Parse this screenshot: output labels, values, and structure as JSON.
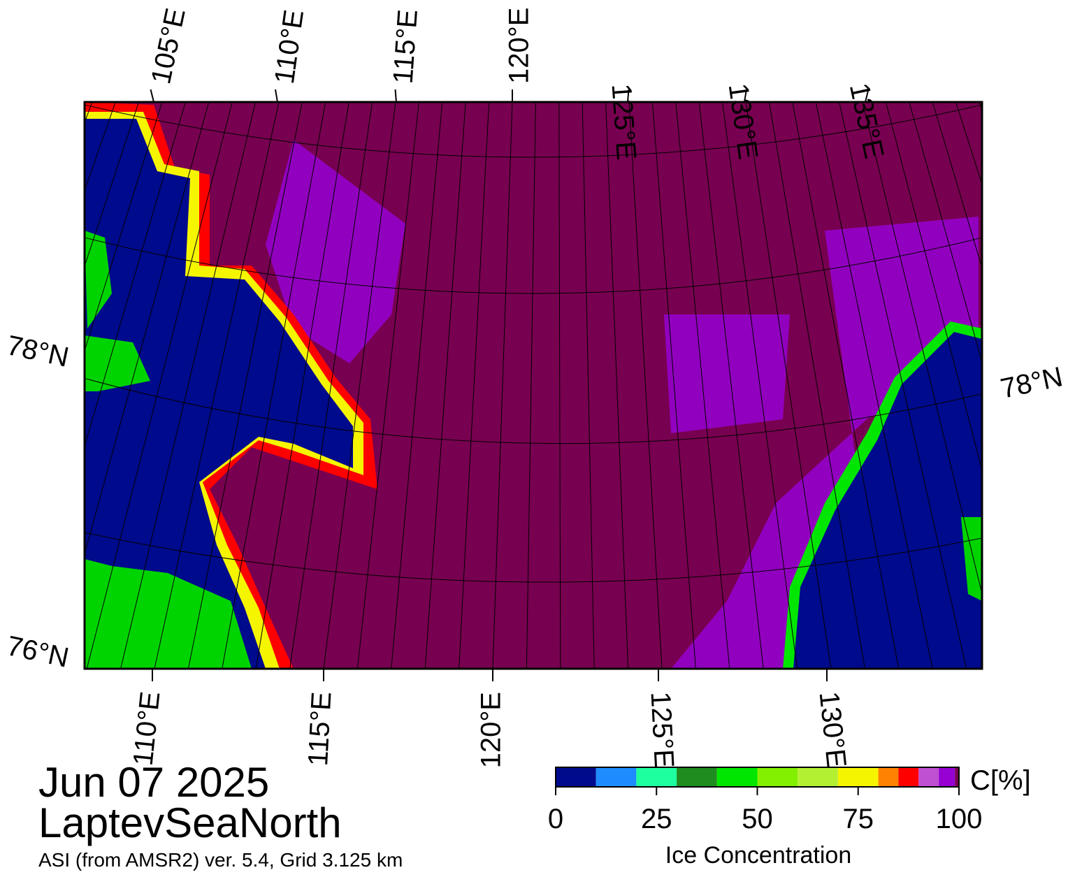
{
  "map": {
    "top_lon_labels": [
      "105°E",
      "110°E",
      "115°E",
      "120°E",
      "125°E",
      "130°E",
      "135°E"
    ],
    "bottom_lon_labels": [
      "110°E",
      "115°E",
      "120°E",
      "125°E",
      "130°E"
    ],
    "lat_labels": {
      "left_upper": "78°N",
      "left_lower": "76°N",
      "right": "78°N"
    }
  },
  "caption": {
    "date": "Jun 07 2025",
    "region": "LaptevSeaNorth",
    "source": "ASI (from AMSR2) ver. 5.4,  Grid 3.125 km"
  },
  "colorbar": {
    "title": "Ice Concentration",
    "unit_label": "C[%]",
    "range": [
      0,
      100
    ],
    "ticks": [
      0,
      25,
      50,
      75,
      100
    ],
    "bounds": [
      0,
      10,
      20,
      30,
      40,
      50,
      60,
      70,
      80,
      85,
      90,
      95,
      99,
      100
    ],
    "colors": [
      "#000a8c",
      "#1e8cff",
      "#1effa0",
      "#1e8c1e",
      "#00e600",
      "#82f000",
      "#b4f032",
      "#f5f500",
      "#ff8200",
      "#ff0000",
      "#c050d2",
      "#9600d2",
      "#780050"
    ]
  }
}
